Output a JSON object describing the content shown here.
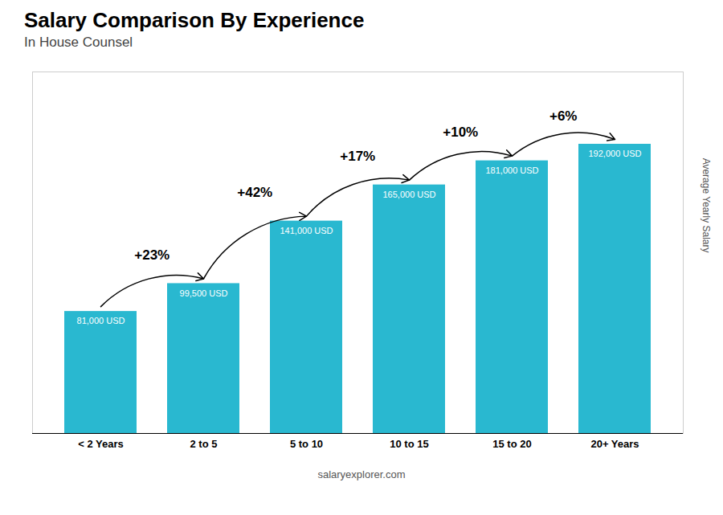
{
  "chart_data": {
    "type": "bar",
    "title": "Salary Comparison By Experience",
    "subtitle": "In House Counsel",
    "categories": [
      "< 2 Years",
      "2 to 5",
      "5 to 10",
      "10 to 15",
      "15 to 20",
      "20+ Years"
    ],
    "values": [
      81000,
      99500,
      141000,
      165000,
      181000,
      192000
    ],
    "value_labels": [
      "81,000 USD",
      "99,500 USD",
      "141,000 USD",
      "165,000 USD",
      "181,000 USD",
      "192,000 USD"
    ],
    "data_labels": true,
    "annotations": [
      "+23%",
      "+42%",
      "+17%",
      "+10%",
      "+6%"
    ],
    "color": "#29b8d0",
    "ylabel": "Average Yearly Salary",
    "ylim": [
      0,
      240000
    ],
    "tick_labels": "x",
    "grid": false,
    "caption": "salaryexplorer.com"
  }
}
